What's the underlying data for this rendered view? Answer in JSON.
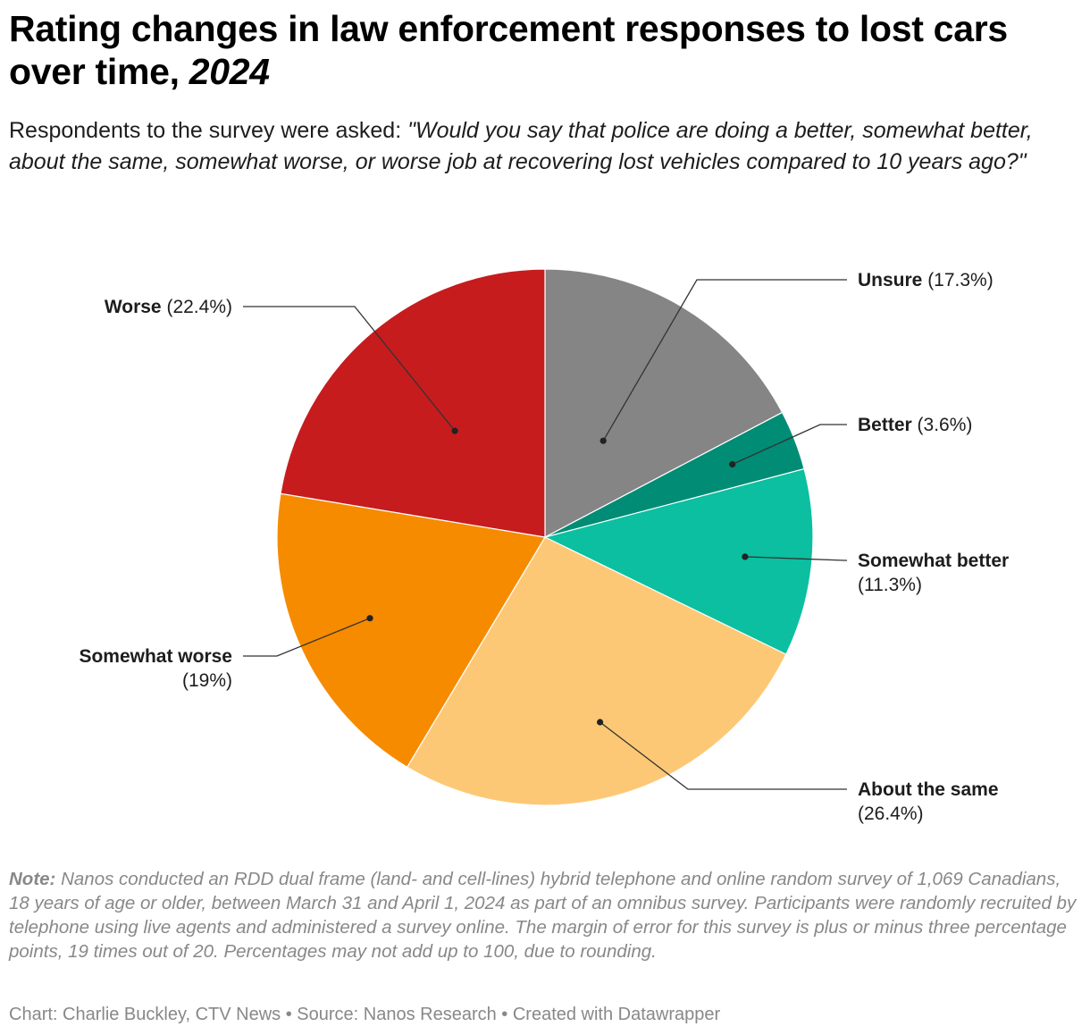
{
  "header": {
    "title_main": "Rating changes in law enforcement responses to lost cars over time,",
    "title_year": "2024",
    "subtitle_lead": "Respondents to the survey were asked:",
    "subtitle_question": "\"Would you say that police are doing a better, somewhat better, about the same, somewhat worse, or worse job at recovering lost vehicles compared to 10 years ago?\""
  },
  "chart_data": {
    "type": "pie",
    "start_angle_deg": 0,
    "direction": "clockwise",
    "slices": [
      {
        "label": "Unsure",
        "value_label": "(17.3%)",
        "value": 17.3,
        "color": "#858585"
      },
      {
        "label": "Better",
        "value_label": "(3.6%)",
        "value": 3.6,
        "color": "#008c75"
      },
      {
        "label": "Somewhat better",
        "value_label": "(11.3%)",
        "value": 11.3,
        "color": "#0bbfa0"
      },
      {
        "label": "About the same",
        "value_label": "(26.4%)",
        "value": 26.4,
        "color": "#fdc876"
      },
      {
        "label": "Somewhat worse",
        "value_label": "(19%)",
        "value": 19.0,
        "color": "#f68b00"
      },
      {
        "label": "Worse",
        "value_label": "(22.4%)",
        "value": 22.4,
        "color": "#c61c1e"
      }
    ]
  },
  "note": {
    "label": "Note:",
    "text": "Nanos conducted an RDD dual frame (land- and cell-lines) hybrid telephone and online random survey of 1,069 Canadians, 18 years of age or older, between March 31 and April 1, 2024 as part of an omnibus survey. Participants were randomly recruited by telephone using live agents and administered a survey online. The margin of error for this survey is plus or minus three percentage points, 19 times out of 20. Percentages may not add up to 100, due to rounding."
  },
  "footer": {
    "credit": "Chart: Charlie Buckley, CTV News • Source: Nanos Research • Created with Datawrapper"
  }
}
